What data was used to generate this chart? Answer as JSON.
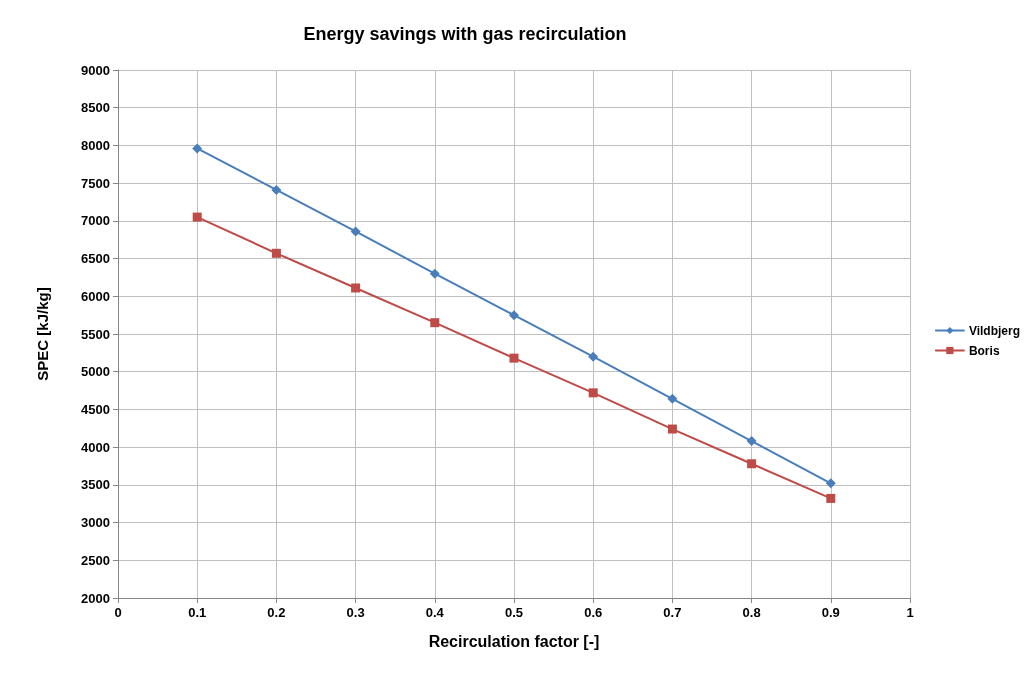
{
  "chart_data": {
    "type": "line",
    "title": "Energy savings with gas recirculation",
    "xlabel": "Recirculation factor [-]",
    "ylabel": "SPEC [kJ/kg]",
    "x": [
      0.1,
      0.2,
      0.3,
      0.4,
      0.5,
      0.6,
      0.7,
      0.8,
      0.9
    ],
    "series": [
      {
        "name": "Vildbjerg",
        "color": "#4a7ebb",
        "marker": "diamond",
        "values": [
          7960,
          7410,
          6860,
          6300,
          5750,
          5200,
          4640,
          4080,
          3520
        ]
      },
      {
        "name": "Boris",
        "color": "#be4b48",
        "marker": "square",
        "values": [
          7050,
          6570,
          6110,
          5650,
          5180,
          4720,
          4240,
          3780,
          3320
        ]
      }
    ],
    "xlim": [
      0,
      1
    ],
    "xticks": [
      0,
      0.1,
      0.2,
      0.3,
      0.4,
      0.5,
      0.6,
      0.7,
      0.8,
      0.9,
      1
    ],
    "ylim": [
      2000,
      9000
    ],
    "yticks": [
      2000,
      2500,
      3000,
      3500,
      4000,
      4500,
      5000,
      5500,
      6000,
      6500,
      7000,
      7500,
      8000,
      8500,
      9000
    ],
    "grid": true,
    "legend": "right",
    "line_style": "solid"
  }
}
